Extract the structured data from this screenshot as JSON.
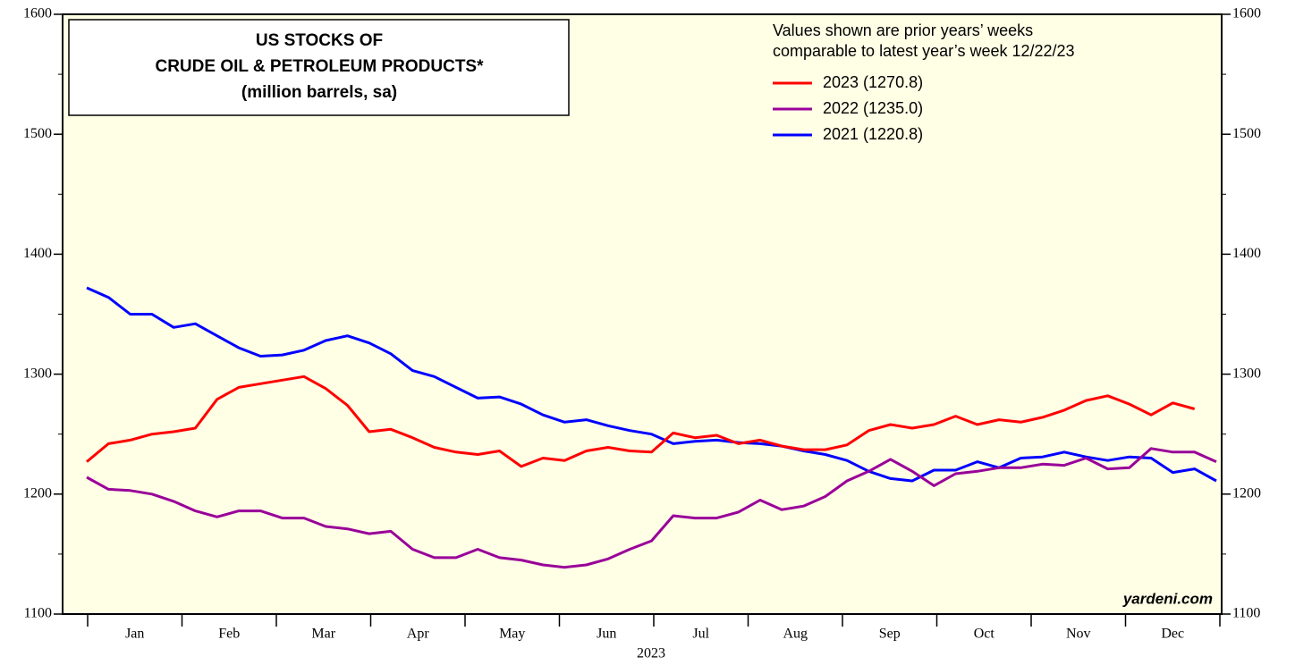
{
  "chart_data": {
    "type": "line",
    "title": [
      "US STOCKS OF",
      "CRUDE OIL & PETROLEUM PRODUCTS*",
      "(million barrels, sa)"
    ],
    "note": [
      "Values shown are prior years’ weeks",
      "comparable to latest year’s week 12/22/23"
    ],
    "source": "yardeni.com",
    "xlabel": "2023",
    "months": [
      "Jan",
      "Feb",
      "Mar",
      "Apr",
      "May",
      "Jun",
      "Jul",
      "Aug",
      "Sep",
      "Oct",
      "Nov",
      "Dec"
    ],
    "ylim": [
      1100,
      1600
    ],
    "yticks": [
      1100,
      1200,
      1300,
      1400,
      1500,
      1600
    ],
    "series": [
      {
        "name": "2023 (1270.8)",
        "color": "#ff0000",
        "values": [
          1227,
          1242,
          1245,
          1250,
          1252,
          1255,
          1279,
          1289,
          1292,
          1295,
          1298,
          1288,
          1274,
          1252,
          1254,
          1247,
          1239,
          1235,
          1233,
          1236,
          1223,
          1230,
          1228,
          1236,
          1239,
          1236,
          1235,
          1251,
          1247,
          1249,
          1242,
          1245,
          1240,
          1237,
          1237,
          1241,
          1253,
          1258,
          1255,
          1258,
          1265,
          1258,
          1262,
          1260,
          1264,
          1270,
          1278,
          1282,
          1275,
          1266,
          1276,
          1271,
          null
        ]
      },
      {
        "name": "2022 (1235.0)",
        "color": "#990099",
        "values": [
          1214,
          1204,
          1203,
          1200,
          1194,
          1186,
          1181,
          1186,
          1186,
          1180,
          1180,
          1173,
          1171,
          1167,
          1169,
          1154,
          1147,
          1147,
          1154,
          1147,
          1145,
          1141,
          1139,
          1141,
          1146,
          1154,
          1161,
          1182,
          1180,
          1180,
          1185,
          1195,
          1187,
          1190,
          1198,
          1211,
          1219,
          1229,
          1219,
          1207,
          1217,
          1219,
          1222,
          1222,
          1225,
          1224,
          1230,
          1221,
          1222,
          1238,
          1235,
          1235,
          1227
        ]
      },
      {
        "name": "2021 (1220.8)",
        "color": "#0000ff",
        "values": [
          1372,
          1364,
          1350,
          1350,
          1339,
          1342,
          1332,
          1322,
          1315,
          1316,
          1320,
          1328,
          1332,
          1326,
          1317,
          1303,
          1298,
          1289,
          1280,
          1281,
          1275,
          1266,
          1260,
          1262,
          1257,
          1253,
          1250,
          1242,
          1244,
          1245,
          1243,
          1242,
          1240,
          1236,
          1233,
          1228,
          1219,
          1213,
          1211,
          1220,
          1220,
          1227,
          1222,
          1230,
          1231,
          1235,
          1231,
          1228,
          1231,
          1230,
          1218,
          1221,
          1211
        ]
      }
    ]
  }
}
